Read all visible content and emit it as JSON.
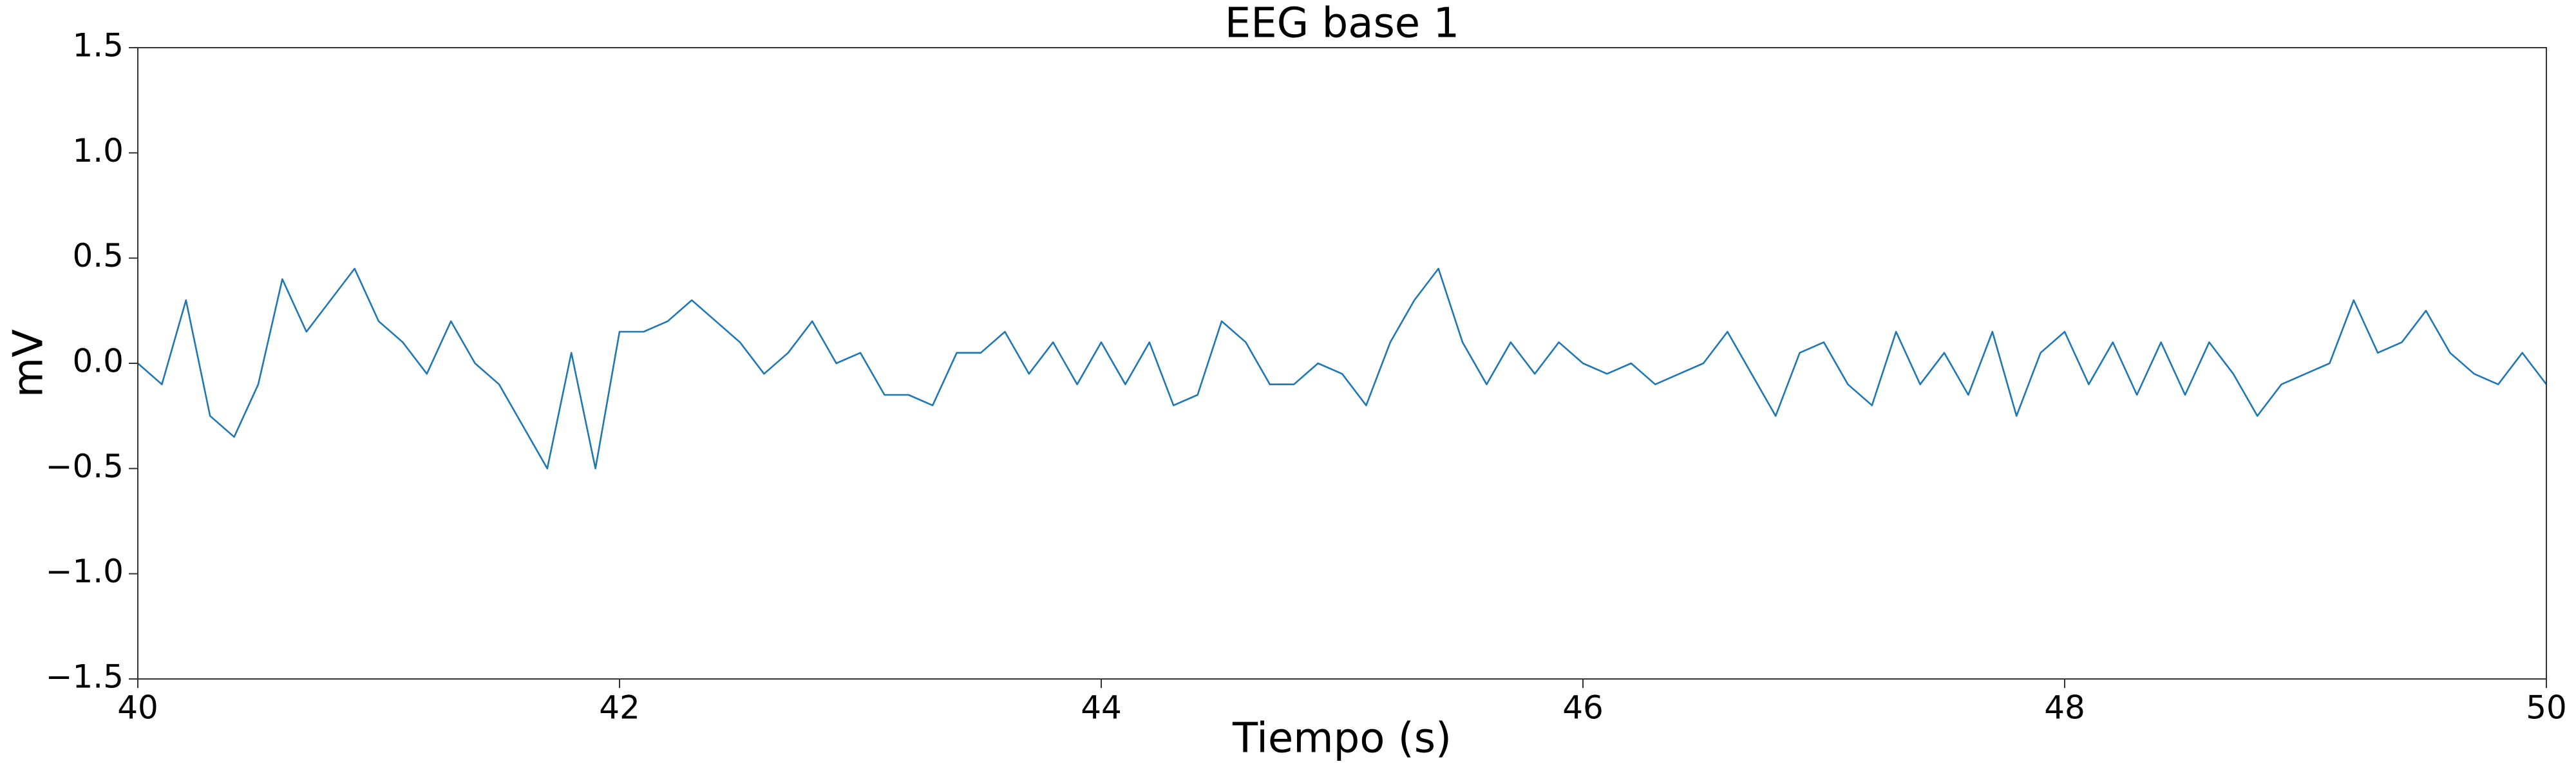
{
  "chart_data": {
    "type": "line",
    "title": "EEG base 1",
    "xlabel": "Tiempo (s)",
    "ylabel": "mV",
    "xlim": [
      40,
      50
    ],
    "ylim": [
      -1.5,
      1.5
    ],
    "xticks": [
      40,
      42,
      44,
      46,
      48,
      50
    ],
    "yticks": [
      {
        "value": -1.5,
        "label": "−1.5"
      },
      {
        "value": -1.0,
        "label": "−1.0"
      },
      {
        "value": -0.5,
        "label": "−0.5"
      },
      {
        "value": 0.0,
        "label": "0.0"
      },
      {
        "value": 0.5,
        "label": "0.5"
      },
      {
        "value": 1.0,
        "label": "1.0"
      },
      {
        "value": 1.5,
        "label": "1.5"
      }
    ],
    "grid": false,
    "x": [
      40.0,
      40.1,
      40.2,
      40.3,
      40.4,
      40.5,
      40.6,
      40.7,
      40.8,
      40.9,
      41.0,
      41.1,
      41.2,
      41.3,
      41.4,
      41.5,
      41.6,
      41.7,
      41.8,
      41.9,
      42.0,
      42.1,
      42.2,
      42.3,
      42.4,
      42.5,
      42.6,
      42.7,
      42.8,
      42.9,
      43.0,
      43.1,
      43.2,
      43.3,
      43.4,
      43.5,
      43.6,
      43.7,
      43.8,
      43.9,
      44.0,
      44.1,
      44.2,
      44.3,
      44.4,
      44.5,
      44.6,
      44.7,
      44.8,
      44.9,
      45.0,
      45.1,
      45.2,
      45.3,
      45.4,
      45.5,
      45.6,
      45.7,
      45.8,
      45.9,
      46.0,
      46.1,
      46.2,
      46.3,
      46.4,
      46.5,
      46.6,
      46.7,
      46.8,
      46.9,
      47.0,
      47.1,
      47.2,
      47.3,
      47.4,
      47.5,
      47.6,
      47.7,
      47.8,
      47.9,
      48.0,
      48.1,
      48.2,
      48.3,
      48.4,
      48.5,
      48.6,
      48.7,
      48.8,
      48.9,
      49.0,
      49.1,
      49.2,
      49.3,
      49.4,
      49.5,
      49.6,
      49.7,
      49.8,
      49.9,
      50.0
    ],
    "series": [
      {
        "color": "#1f77b4",
        "values": [
          0.0,
          -0.1,
          0.3,
          -0.25,
          -0.35,
          -0.1,
          0.4,
          0.15,
          0.3,
          0.45,
          0.2,
          0.1,
          -0.05,
          0.2,
          0.0,
          -0.1,
          -0.3,
          -0.5,
          0.05,
          -0.5,
          0.15,
          0.15,
          0.2,
          0.3,
          0.2,
          0.1,
          -0.05,
          0.05,
          0.2,
          0.0,
          0.05,
          -0.15,
          -0.15,
          -0.2,
          0.05,
          0.05,
          0.15,
          -0.05,
          0.1,
          -0.1,
          0.1,
          -0.1,
          0.1,
          -0.2,
          -0.15,
          0.2,
          0.1,
          -0.1,
          -0.1,
          0.0,
          -0.05,
          -0.2,
          0.1,
          0.3,
          0.45,
          0.1,
          -0.1,
          0.1,
          -0.05,
          0.1,
          0.0,
          -0.05,
          0.0,
          -0.1,
          -0.05,
          0.0,
          0.15,
          -0.05,
          -0.25,
          0.05,
          0.1,
          -0.1,
          -0.2,
          0.15,
          -0.1,
          0.05,
          -0.15,
          0.15,
          -0.25,
          0.05,
          0.15,
          -0.1,
          0.1,
          -0.15,
          0.1,
          -0.15,
          0.1,
          -0.05,
          -0.25,
          -0.1,
          -0.05,
          0.0,
          0.3,
          0.05,
          0.1,
          0.25,
          0.05,
          -0.05,
          -0.1,
          0.05,
          -0.1
        ]
      }
    ]
  }
}
